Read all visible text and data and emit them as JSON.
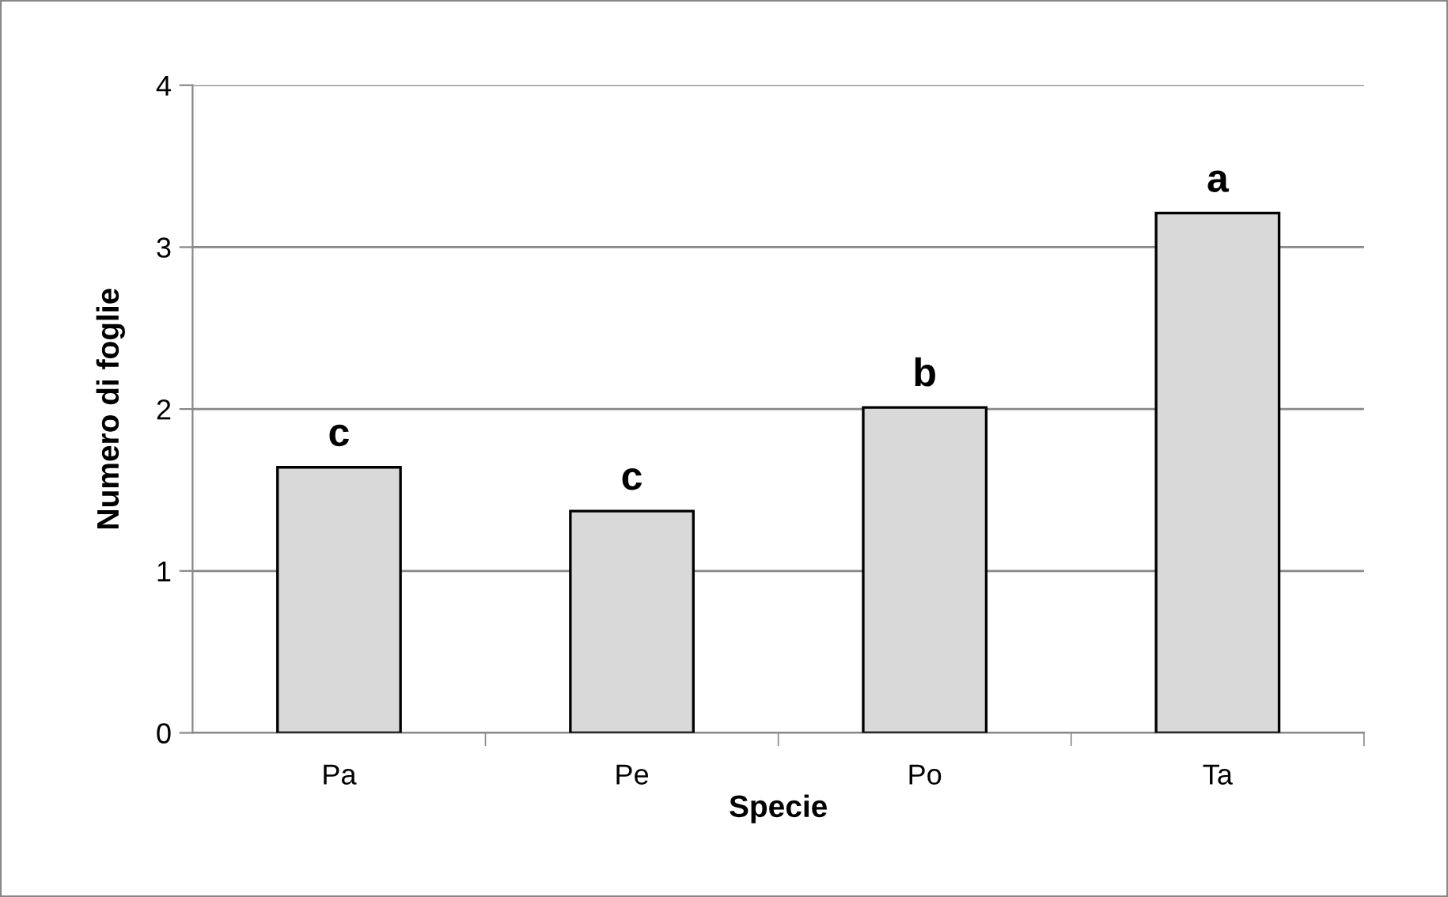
{
  "chart_data": {
    "type": "bar",
    "xlabel": "Specie",
    "ylabel": "Numero di foglie",
    "categories": [
      "Pa",
      "Pe",
      "Po",
      "Ta"
    ],
    "values": [
      1.64,
      1.37,
      2.01,
      3.21
    ],
    "color": "#d9d9d9",
    "ylim": [
      0,
      4
    ],
    "yticks": [
      0,
      1,
      2,
      3,
      4
    ],
    "grid": "y",
    "annotations": [
      {
        "text": "c",
        "x": "Pa",
        "y": 1.64
      },
      {
        "text": "c",
        "x": "Pe",
        "y": 1.37
      },
      {
        "text": "b",
        "x": "Po",
        "y": 2.01
      },
      {
        "text": "a",
        "x": "Ta",
        "y": 3.21
      }
    ]
  }
}
